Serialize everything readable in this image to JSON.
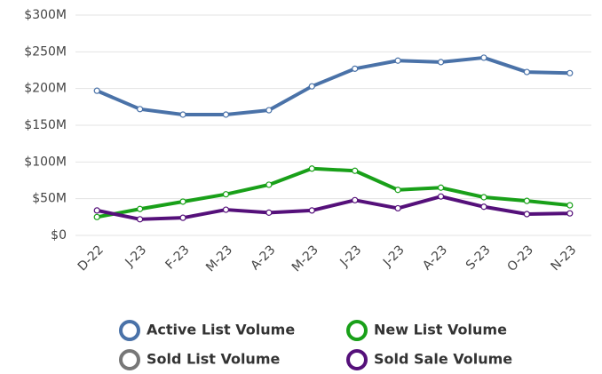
{
  "chart_data": {
    "type": "line",
    "categories": [
      "D-22",
      "J-23",
      "F-23",
      "M-23",
      "A-23",
      "M-23",
      "J-23",
      "J-23",
      "A-23",
      "S-23",
      "O-23",
      "N-23"
    ],
    "series": [
      {
        "name": "Active List Volume",
        "color": "#4a72a8",
        "values": [
          197,
          172,
          164.5,
          164.5,
          170.5,
          203,
          227,
          238,
          236,
          242,
          222.5,
          221
        ]
      },
      {
        "name": "New List Volume",
        "color": "#19a019",
        "values": [
          25,
          36,
          46,
          56,
          69,
          91,
          88,
          62,
          65,
          52,
          47,
          41
        ]
      },
      {
        "name": "Sold List Volume",
        "color": "#777777",
        "values": [
          null,
          null,
          null,
          null,
          null,
          null,
          null,
          null,
          null,
          null,
          null,
          null
        ]
      },
      {
        "name": "Sold Sale Volume",
        "color": "#55107a",
        "values": [
          34,
          22,
          24,
          35,
          31,
          34,
          48,
          37,
          53,
          39,
          29,
          30
        ]
      }
    ],
    "ylim": [
      0,
      300
    ],
    "yticks": [
      {
        "value": 0,
        "label": "$0"
      },
      {
        "value": 50,
        "label": "$50M"
      },
      {
        "value": 100,
        "label": "$100M"
      },
      {
        "value": 150,
        "label": "$150M"
      },
      {
        "value": 200,
        "label": "$200M"
      },
      {
        "value": 250,
        "label": "$250M"
      },
      {
        "value": 300,
        "label": "$300M"
      }
    ],
    "grid": true,
    "legend": "bottom"
  }
}
